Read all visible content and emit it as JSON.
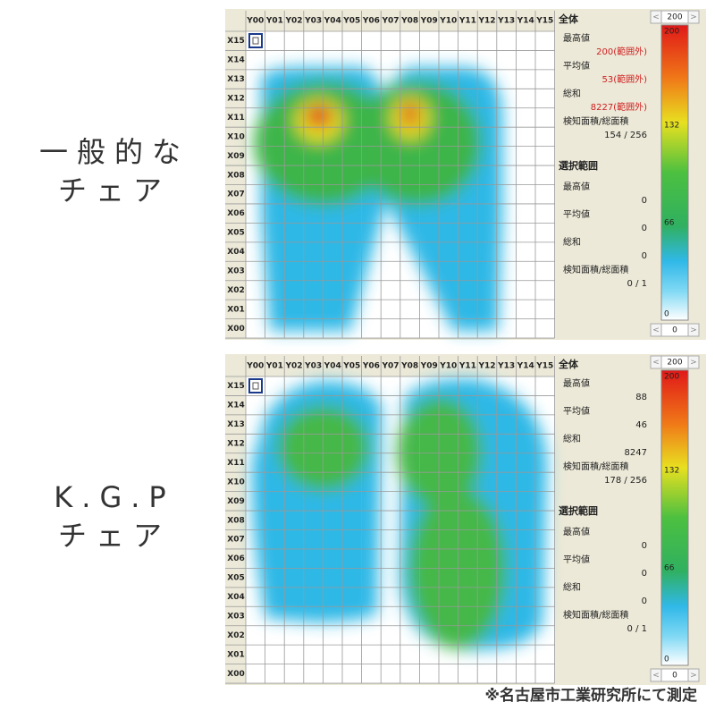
{
  "columns": [
    "Y00",
    "Y01",
    "Y02",
    "Y03",
    "Y04",
    "Y05",
    "Y06",
    "Y07",
    "Y08",
    "Y09",
    "Y10",
    "Y11",
    "Y12",
    "Y13",
    "Y14",
    "Y15"
  ],
  "rows": [
    "X15",
    "X14",
    "X13",
    "X12",
    "X11",
    "X10",
    "X09",
    "X08",
    "X07",
    "X06",
    "X05",
    "X04",
    "X03",
    "X02",
    "X01",
    "X00"
  ],
  "stat_labels": {
    "overall": "全体",
    "max": "最高値",
    "average": "平均値",
    "sum": "総和",
    "area": "検知面積/総面積",
    "selection": "選択範囲"
  },
  "scale": {
    "max": 200,
    "ticks": [
      200,
      132,
      66,
      0
    ],
    "min": 0
  },
  "panels": [
    {
      "label": [
        "一般的な",
        "チェア"
      ],
      "overall": {
        "max": "200(範囲外)",
        "average": "53(範囲外)",
        "sum": "8227(範囲外)",
        "area": "154 / 256"
      },
      "selection": {
        "max": 0,
        "average": 0,
        "sum": 0,
        "area": "0 / 1"
      }
    },
    {
      "label": [
        "K.G.P",
        "チェア"
      ],
      "overall": {
        "max": 88,
        "average": 46,
        "sum": 8247,
        "area": "178 / 256"
      },
      "selection": {
        "max": 0,
        "average": 0,
        "sum": 0,
        "area": "0 / 1"
      }
    }
  ],
  "footnote": "※名古屋市工業研究所にて測定"
}
